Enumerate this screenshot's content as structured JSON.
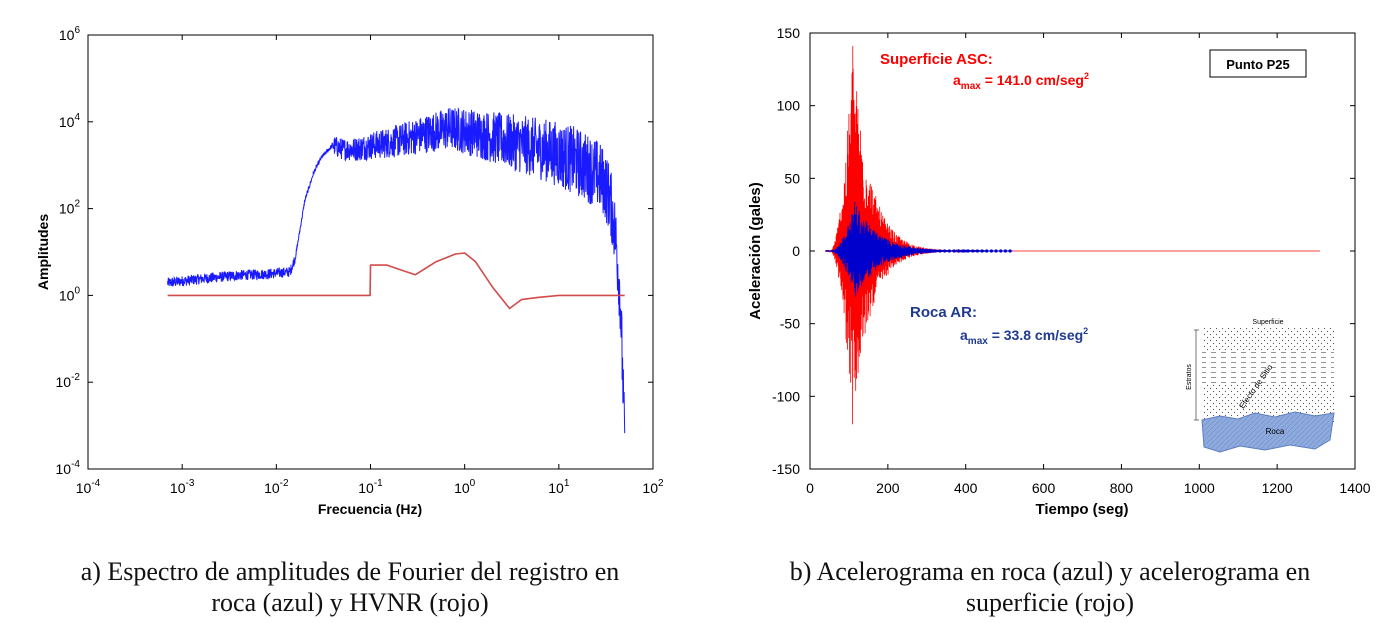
{
  "chart_data": [
    {
      "type": "line",
      "xscale": "log",
      "yscale": "log",
      "title": "",
      "xlabel": "Frecuencia (Hz)",
      "ylabel": "Amplitudes",
      "xlim": [
        0.0001,
        100
      ],
      "ylim": [
        0.0001,
        1000000
      ],
      "x_tick_labels": [
        "10^-4",
        "10^-3",
        "10^-2",
        "10^-1",
        "10^0",
        "10^1",
        "10^2"
      ],
      "y_tick_labels": [
        "10^-4",
        "10^-2",
        "10^0",
        "10^2",
        "10^4",
        "10^6"
      ],
      "x_tick_values": [
        0.0001,
        0.001,
        0.01,
        0.1,
        1,
        10,
        100
      ],
      "y_tick_values": [
        0.0001,
        0.01,
        1,
        100,
        10000,
        1000000
      ],
      "series": [
        {
          "name": "Roca (azul)",
          "color": "#1a1aff",
          "x": [
            0.0007,
            0.001,
            0.002,
            0.004,
            0.008,
            0.014,
            0.016,
            0.02,
            0.025,
            0.03,
            0.04,
            0.05,
            0.07,
            0.1,
            0.2,
            0.4,
            0.7,
            1.0,
            2,
            4,
            8,
            15,
            25,
            30,
            35,
            40,
            45,
            50
          ],
          "y": [
            2,
            2.2,
            2.6,
            3,
            3.2,
            3.6,
            8,
            150,
            700,
            1500,
            3000,
            2500,
            2500,
            3000,
            4000,
            6000,
            8000,
            7000,
            5000,
            3500,
            2500,
            1500,
            800,
            500,
            200,
            30,
            1,
            0.0005
          ]
        },
        {
          "name": "HVNR (rojo)",
          "color": "#d24b4b",
          "x": [
            0.0007,
            0.01,
            0.099,
            0.1,
            0.15,
            0.2,
            0.3,
            0.5,
            0.8,
            1.0,
            1.3,
            2,
            3,
            4,
            6,
            10,
            20,
            30,
            40,
            50
          ],
          "y": [
            1,
            1,
            1,
            5,
            5,
            4,
            3,
            6,
            9,
            9.5,
            6,
            1.5,
            0.5,
            0.8,
            0.9,
            1,
            1,
            1,
            1,
            1
          ]
        }
      ]
    },
    {
      "type": "line",
      "title": "Punto P25",
      "xlabel": "Tiempo (seg)",
      "ylabel": "Aceleración (gales)",
      "xlim": [
        0,
        1400
      ],
      "ylim": [
        -150,
        150
      ],
      "x_tick_labels": [
        "0",
        "200",
        "400",
        "600",
        "800",
        "1000",
        "1200",
        "1400"
      ],
      "y_tick_labels": [
        "150",
        "100",
        "50",
        "0",
        "-50",
        "-100",
        "-150"
      ],
      "x_tick_values": [
        0,
        200,
        400,
        600,
        800,
        1000,
        1200,
        1400
      ],
      "y_tick_values": [
        150,
        100,
        50,
        0,
        -50,
        -100,
        -150
      ],
      "series": [
        {
          "name": "Superficie ASC",
          "color": "#ff0000",
          "amax_label": "a",
          "amax_sub": "max",
          "amax_value": " = 141.0 cm/seg",
          "amax_unit_exp": "2",
          "peak": 141.0,
          "min": -122,
          "t_start": 50,
          "t_peak": 110,
          "t_end": 1310
        },
        {
          "name": "Roca AR",
          "color": "#0000cc",
          "amax_label": "a",
          "amax_sub": "max",
          "amax_value": " = 33.8 cm/seg",
          "amax_unit_exp": "2",
          "peak": 33.8,
          "t_start": 50,
          "t_peak": 115,
          "t_end": 520
        }
      ],
      "annotations": {
        "surface_title": "Superficie ASC:",
        "rock_title": "Roca AR:",
        "point_box": "Punto P25"
      },
      "inset": {
        "top_label": "Superficie",
        "side_label": "Estratos",
        "effect_label": "Efecto de Sitio",
        "rock_label": "Roca",
        "rock_color": "#8faadc"
      }
    }
  ],
  "captions": {
    "left_line1": "a) Espectro de amplitudes de Fourier del registro en",
    "left_line2": "roca (azul) y HVNR (rojo)",
    "right_line1": "b) Acelerograma en roca (azul) y acelerograma en",
    "right_line2": "superficie (rojo)"
  }
}
